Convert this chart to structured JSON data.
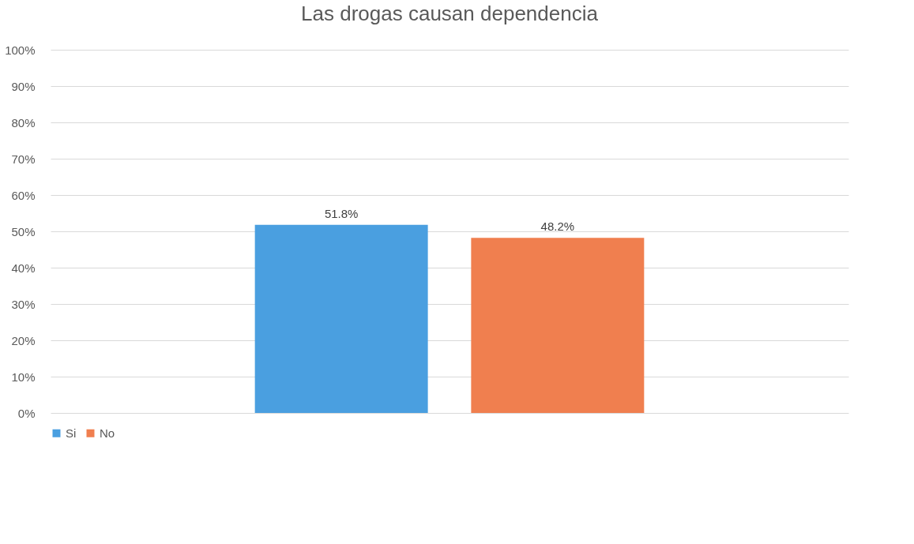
{
  "chart_data": {
    "type": "bar",
    "title": "Las drogas causan dependencia",
    "categories": [
      null
    ],
    "series": [
      {
        "name": "Si",
        "color": "#4a9fe0",
        "values": [
          51.8
        ],
        "value_labels": [
          "51.8%"
        ]
      },
      {
        "name": "No",
        "color": "#f07f4f",
        "values": [
          48.2
        ],
        "value_labels": [
          "48.2%"
        ]
      }
    ],
    "ylim": [
      0,
      100
    ],
    "yticks": [
      {
        "value": 0,
        "label": "0%"
      },
      {
        "value": 10,
        "label": "10%"
      },
      {
        "value": 20,
        "label": "20%"
      },
      {
        "value": 30,
        "label": "30%"
      },
      {
        "value": 40,
        "label": "40%"
      },
      {
        "value": 50,
        "label": "50%"
      },
      {
        "value": 60,
        "label": "60%"
      },
      {
        "value": 70,
        "label": "70%"
      },
      {
        "value": 80,
        "label": "80%"
      },
      {
        "value": 90,
        "label": "90%"
      },
      {
        "value": 100,
        "label": "100%"
      }
    ],
    "grid": "y",
    "legend": "bottom"
  }
}
